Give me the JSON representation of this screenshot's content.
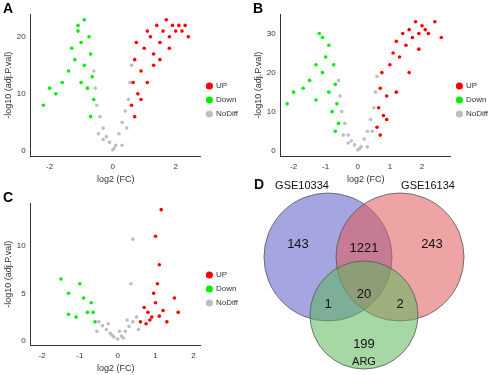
{
  "chart_data": [
    {
      "type": "scatter",
      "panel_label": "A",
      "x_label": "log2 (FC)",
      "y_label": "-log10 (adj.P.val)",
      "xlim": [
        -2.6,
        2.8
      ],
      "ylim": [
        -1,
        24
      ],
      "xticks": [
        -2,
        0,
        2
      ],
      "yticks": [
        0,
        10,
        20
      ],
      "grid": false,
      "legend": "right",
      "series": [
        {
          "name": "UP",
          "color": "#FF0000",
          "marker": "circle",
          "x": [
            0.6,
            0.65,
            0.7,
            0.75,
            0.8,
            0.9,
            1.0,
            1.1,
            1.2,
            1.3,
            1.4,
            1.5,
            1.6,
            1.7,
            1.8,
            1.9,
            2.0,
            2.1,
            2.2,
            2.3,
            0.7,
            0.9,
            1.1,
            1.3,
            1.5,
            1.8,
            2.4
          ],
          "values": [
            8,
            12,
            16,
            19,
            10,
            14,
            18,
            21,
            20,
            15,
            22,
            19,
            21,
            23,
            20,
            22,
            21,
            22,
            21,
            22,
            6,
            9,
            12,
            17,
            16,
            18,
            20
          ]
        },
        {
          "name": "Down",
          "color": "#00EE00",
          "marker": "circle",
          "x": [
            -0.6,
            -0.65,
            -0.7,
            -0.75,
            -0.8,
            -0.9,
            -1.0,
            -1.1,
            -1.2,
            -1.3,
            -1.4,
            -1.6,
            -1.8,
            -2.0,
            -2.2,
            -0.7,
            -0.9,
            -1.0,
            -1.1
          ],
          "values": [
            9,
            13,
            17,
            20,
            11,
            15,
            19,
            21,
            16,
            18,
            14,
            12,
            10,
            11,
            8,
            6,
            23,
            12,
            22
          ]
        },
        {
          "name": "NoDiff",
          "color": "#BEBEBE",
          "marker": "circle",
          "x": [
            0,
            0.1,
            -0.1,
            0.2,
            -0.2,
            0.3,
            -0.3,
            0.4,
            -0.4,
            0.5,
            -0.5,
            0.55,
            -0.55,
            0.6,
            -0.6,
            0.3,
            -0.3,
            0.45,
            -0.45,
            0.05
          ],
          "values": [
            0.2,
            1,
            1.5,
            3,
            2.5,
            5,
            4,
            7,
            6,
            9,
            8,
            12,
            11,
            15,
            14,
            1,
            2,
            4,
            3,
            0.5
          ]
        }
      ]
    },
    {
      "type": "scatter",
      "panel_label": "B",
      "x_label": "log2 (FC)",
      "y_label": "-log10 (adj.P.val)",
      "xlim": [
        -2.4,
        2.9
      ],
      "ylim": [
        -1.5,
        35
      ],
      "xticks": [
        -2,
        -1,
        0,
        1,
        2
      ],
      "yticks": [
        0,
        10,
        20,
        30
      ],
      "grid": false,
      "legend": "right",
      "series": [
        {
          "name": "UP",
          "color": "#FF0000",
          "marker": "circle",
          "x": [
            0.6,
            0.65,
            0.7,
            0.75,
            0.8,
            0.9,
            1.0,
            1.1,
            1.2,
            1.3,
            1.4,
            1.5,
            1.6,
            1.7,
            1.8,
            1.9,
            2.0,
            2.1,
            2.2,
            2.4,
            2.6,
            0.7,
            0.9,
            1.2,
            1.6,
            1.9
          ],
          "values": [
            6,
            11,
            16,
            20,
            9,
            14,
            22,
            25,
            28,
            24,
            30,
            27,
            31,
            29,
            33,
            30,
            32,
            31,
            30,
            33,
            29,
            4,
            8,
            15,
            20,
            26
          ]
        },
        {
          "name": "Down",
          "color": "#00EE00",
          "marker": "circle",
          "x": [
            -0.6,
            -0.65,
            -0.7,
            -0.75,
            -0.8,
            -0.9,
            -1.0,
            -1.1,
            -1.2,
            -1.3,
            -1.5,
            -1.7,
            -2.0,
            -2.2,
            -0.7,
            -0.9,
            -1.1,
            -1.3
          ],
          "values": [
            7,
            12,
            17,
            22,
            10,
            15,
            24,
            29,
            30,
            22,
            18,
            16,
            15,
            12,
            5,
            27,
            20,
            13
          ]
        },
        {
          "name": "NoDiff",
          "color": "#BEBEBE",
          "marker": "circle",
          "x": [
            0,
            0.1,
            -0.1,
            0.2,
            -0.2,
            0.3,
            -0.3,
            0.4,
            -0.4,
            0.5,
            -0.5,
            0.55,
            -0.55,
            0.6,
            -0.6,
            0.3,
            -0.3,
            0.45,
            -0.45,
            0.05
          ],
          "values": [
            0.2,
            1,
            1.5,
            3,
            2.5,
            5,
            4,
            8,
            7,
            11,
            10,
            15,
            14,
            19,
            18,
            1,
            2,
            5,
            4,
            0.5
          ]
        }
      ]
    },
    {
      "type": "scatter",
      "panel_label": "C",
      "x_label": "log2 (FC)",
      "y_label": "-log10 (adj.P.val)",
      "xlim": [
        -2.3,
        2.2
      ],
      "ylim": [
        -0.5,
        14.5
      ],
      "xticks": [
        -2,
        -1,
        0,
        1,
        2
      ],
      "yticks": [
        0,
        5,
        10
      ],
      "grid": false,
      "legend": "right",
      "series": [
        {
          "name": "UP",
          "color": "#FF0000",
          "marker": "circle",
          "x": [
            0.6,
            0.7,
            0.75,
            0.8,
            0.9,
            0.95,
            1.0,
            1.05,
            1.1,
            1.15,
            1.2,
            1.3,
            1.5,
            1.6,
            0.85,
            1.1,
            1.0
          ],
          "values": [
            2,
            3.5,
            1.8,
            3,
            2.5,
            5,
            4,
            6,
            8,
            13.8,
            3.2,
            2,
            4.5,
            3,
            2.2,
            2.6,
            11
          ]
        },
        {
          "name": "Down",
          "color": "#00EE00",
          "marker": "circle",
          "x": [
            -0.6,
            -0.7,
            -0.8,
            -0.9,
            -1.0,
            -1.1,
            -1.3,
            -1.5,
            -1.3,
            -0.65
          ],
          "values": [
            2,
            4,
            3,
            4.5,
            6,
            2.5,
            5,
            6.5,
            2.8,
            3
          ]
        },
        {
          "name": "NoDiff",
          "color": "#BEBEBE",
          "marker": "circle",
          "x": [
            0,
            0.1,
            -0.1,
            0.2,
            -0.2,
            0.3,
            -0.3,
            0.4,
            -0.4,
            0.5,
            -0.5,
            0.35,
            0.4,
            0.15,
            -0.15,
            0.25,
            -0.25,
            0.05,
            0.55,
            -0.55
          ],
          "values": [
            0.2,
            0.5,
            0.4,
            1,
            0.8,
            1.5,
            1.2,
            2,
            1.6,
            2.5,
            2,
            6,
            10.7,
            0.3,
            0.6,
            2.2,
            1.8,
            1,
            1.2,
            1
          ]
        }
      ]
    }
  ],
  "venn": {
    "panel_label": "D",
    "sets": [
      {
        "name": "GSE10334",
        "color": "#5B5BC8"
      },
      {
        "name": "GSE16134",
        "color": "#E05A5A"
      },
      {
        "name": "ARG",
        "color": "#5CB85C"
      }
    ],
    "regions": [
      {
        "sets": [
          "GSE10334"
        ],
        "value": 143
      },
      {
        "sets": [
          "GSE10334",
          "GSE16134"
        ],
        "value": 1221
      },
      {
        "sets": [
          "GSE16134"
        ],
        "value": 243
      },
      {
        "sets": [
          "GSE10334",
          "GSE16134",
          "ARG"
        ],
        "value": 20
      },
      {
        "sets": [
          "GSE10334",
          "ARG"
        ],
        "value": 1
      },
      {
        "sets": [
          "GSE16134",
          "ARG"
        ],
        "value": 2
      },
      {
        "sets": [
          "ARG"
        ],
        "value": 199
      }
    ]
  }
}
